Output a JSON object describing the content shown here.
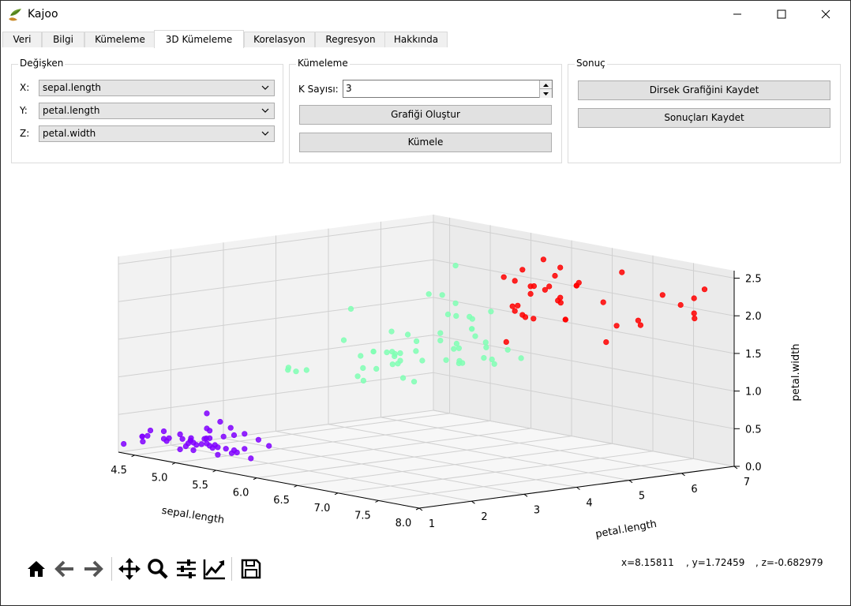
{
  "window": {
    "title": "Kajoo"
  },
  "tabs": [
    "Veri",
    "Bilgi",
    "Kümeleme",
    "3D Kümeleme",
    "Korelasyon",
    "Regresyon",
    "Hakkında"
  ],
  "active_tab": "3D Kümeleme",
  "degisken": {
    "title": "Değişken",
    "x_label": "X:",
    "x_value": "sepal.length",
    "y_label": "Y:",
    "y_value": "petal.length",
    "z_label": "Z:",
    "z_value": "petal.width"
  },
  "kumeleme": {
    "title": "Kümeleme",
    "k_label": "K Sayısı:",
    "k_value": "3",
    "plot_button": "Grafiği Oluştur",
    "cluster_button": "Kümele"
  },
  "sonuc": {
    "title": "Sonuç",
    "elbow_button": "Dirsek Grafiğini Kaydet",
    "results_button": "Sonuçları Kaydet"
  },
  "status": {
    "x": "x=8.15811",
    "y": ", y=1.72459",
    "z": ", z=-0.682979"
  },
  "toolbar_icons": [
    "home-icon",
    "back-icon",
    "forward-icon",
    "pan-icon",
    "zoom-icon",
    "configure-subplots-icon",
    "edit-axes-icon",
    "save-icon"
  ],
  "chart_data": {
    "type": "scatter",
    "dimensions": 3,
    "xlabel": "sepal.length",
    "ylabel": "petal.length",
    "zlabel": "petal.width",
    "xticks": [
      "4.5",
      "5.0",
      "5.5",
      "6.0",
      "6.5",
      "7.0",
      "7.5",
      "8.0"
    ],
    "yticks": [
      "1",
      "2",
      "3",
      "4",
      "5",
      "6",
      "7"
    ],
    "zticks": [
      "0.0",
      "0.5",
      "1.0",
      "1.5",
      "2.0",
      "2.5"
    ],
    "xlim": [
      4.3,
      8.0
    ],
    "ylim": [
      1,
      7
    ],
    "zlim": [
      0,
      2.6
    ],
    "grid": true,
    "series": [
      {
        "color": "#8000ff",
        "points": [
          [
            4.9,
            1.4,
            0.2
          ],
          [
            4.7,
            1.3,
            0.2
          ],
          [
            4.6,
            1.5,
            0.2
          ],
          [
            5.0,
            1.4,
            0.2
          ],
          [
            5.4,
            1.7,
            0.4
          ],
          [
            4.6,
            1.4,
            0.3
          ],
          [
            5.0,
            1.5,
            0.2
          ],
          [
            4.4,
            1.4,
            0.2
          ],
          [
            4.9,
            1.5,
            0.1
          ],
          [
            5.4,
            1.5,
            0.2
          ],
          [
            4.8,
            1.6,
            0.2
          ],
          [
            4.8,
            1.4,
            0.1
          ],
          [
            4.3,
            1.1,
            0.1
          ],
          [
            5.8,
            1.2,
            0.2
          ],
          [
            5.7,
            1.5,
            0.4
          ],
          [
            5.4,
            1.3,
            0.4
          ],
          [
            5.1,
            1.4,
            0.3
          ],
          [
            5.7,
            1.7,
            0.3
          ],
          [
            5.1,
            1.5,
            0.3
          ],
          [
            5.4,
            1.7,
            0.2
          ],
          [
            5.1,
            1.5,
            0.4
          ],
          [
            4.6,
            1.0,
            0.2
          ],
          [
            5.1,
            1.7,
            0.5
          ],
          [
            4.8,
            1.9,
            0.2
          ],
          [
            5.0,
            1.6,
            0.2
          ],
          [
            5.0,
            1.6,
            0.4
          ],
          [
            5.2,
            1.5,
            0.2
          ],
          [
            5.2,
            1.4,
            0.2
          ],
          [
            4.7,
            1.6,
            0.2
          ],
          [
            4.8,
            1.6,
            0.2
          ],
          [
            5.4,
            1.5,
            0.4
          ],
          [
            5.2,
            1.5,
            0.1
          ],
          [
            5.5,
            1.4,
            0.2
          ],
          [
            4.9,
            1.5,
            0.2
          ],
          [
            5.0,
            1.2,
            0.2
          ],
          [
            5.5,
            1.3,
            0.2
          ],
          [
            4.4,
            1.3,
            0.2
          ],
          [
            5.1,
            1.5,
            0.2
          ],
          [
            5.0,
            1.3,
            0.3
          ],
          [
            4.5,
            1.3,
            0.3
          ],
          [
            4.4,
            1.3,
            0.2
          ],
          [
            5.0,
            1.6,
            0.6
          ],
          [
            5.1,
            1.9,
            0.4
          ],
          [
            4.8,
            1.4,
            0.3
          ],
          [
            5.1,
            1.6,
            0.2
          ],
          [
            4.6,
            1.4,
            0.2
          ],
          [
            5.3,
            1.5,
            0.2
          ]
        ]
      },
      {
        "color": "#80ffb4",
        "points": [
          [
            5.5,
            4.0,
            1.3
          ],
          [
            6.5,
            4.6,
            1.5
          ],
          [
            5.7,
            4.5,
            1.3
          ],
          [
            6.3,
            4.7,
            1.6
          ],
          [
            4.9,
            3.3,
            1.0
          ],
          [
            6.6,
            4.6,
            1.3
          ],
          [
            5.2,
            3.9,
            1.4
          ],
          [
            5.0,
            3.5,
            1.0
          ],
          [
            5.9,
            4.2,
            1.5
          ],
          [
            6.0,
            4.0,
            1.0
          ],
          [
            6.1,
            4.7,
            1.4
          ],
          [
            5.6,
            3.6,
            1.3
          ],
          [
            6.7,
            4.4,
            1.4
          ],
          [
            5.6,
            4.5,
            1.5
          ],
          [
            5.8,
            4.1,
            1.0
          ],
          [
            6.2,
            4.5,
            1.5
          ],
          [
            5.6,
            3.9,
            1.1
          ],
          [
            5.9,
            4.8,
            1.8
          ],
          [
            6.1,
            4.0,
            1.3
          ],
          [
            6.3,
            4.9,
            1.5
          ],
          [
            6.1,
            4.7,
            1.2
          ],
          [
            6.4,
            4.3,
            1.3
          ],
          [
            6.6,
            4.4,
            1.4
          ],
          [
            6.8,
            4.8,
            1.4
          ],
          [
            6.0,
            4.5,
            1.5
          ],
          [
            5.7,
            3.5,
            1.0
          ],
          [
            5.5,
            3.8,
            1.1
          ],
          [
            5.5,
            3.7,
            1.0
          ],
          [
            5.8,
            3.9,
            1.2
          ],
          [
            6.0,
            5.1,
            1.6
          ],
          [
            5.4,
            4.5,
            1.5
          ],
          [
            6.0,
            4.5,
            1.6
          ],
          [
            6.7,
            4.7,
            1.5
          ],
          [
            6.3,
            4.4,
            1.3
          ],
          [
            5.6,
            4.1,
            1.3
          ],
          [
            5.5,
            4.0,
            1.3
          ],
          [
            5.5,
            4.4,
            1.2
          ],
          [
            6.1,
            4.6,
            1.4
          ],
          [
            5.8,
            4.0,
            1.2
          ],
          [
            5.0,
            3.3,
            1.0
          ],
          [
            5.6,
            4.2,
            1.3
          ],
          [
            5.7,
            4.2,
            1.2
          ],
          [
            5.7,
            4.2,
            1.3
          ],
          [
            6.2,
            4.3,
            1.3
          ],
          [
            5.1,
            3.0,
            1.1
          ],
          [
            5.7,
            4.1,
            1.3
          ],
          [
            5.8,
            5.1,
            1.9
          ],
          [
            4.9,
            4.5,
            1.7
          ],
          [
            5.7,
            5.0,
            2.0
          ],
          [
            5.8,
            5.1,
            2.4
          ],
          [
            6.0,
            4.8,
            1.8
          ],
          [
            5.6,
            4.9,
            2.0
          ],
          [
            6.2,
            4.8,
            1.8
          ],
          [
            6.1,
            4.9,
            1.8
          ],
          [
            6.3,
            5.0,
            1.9
          ],
          [
            6.0,
            5.1,
            1.6
          ]
        ]
      },
      {
        "color": "#ff0000",
        "points": [
          [
            6.3,
            6.0,
            2.5
          ],
          [
            7.1,
            5.9,
            2.1
          ],
          [
            6.5,
            5.8,
            2.2
          ],
          [
            7.6,
            6.6,
            2.1
          ],
          [
            7.3,
            6.3,
            1.8
          ],
          [
            6.7,
            5.8,
            1.8
          ],
          [
            7.2,
            6.1,
            2.5
          ],
          [
            6.5,
            5.1,
            2.0
          ],
          [
            6.4,
            5.3,
            1.9
          ],
          [
            6.8,
            5.5,
            2.1
          ],
          [
            6.4,
            5.3,
            2.3
          ],
          [
            6.5,
            5.5,
            1.8
          ],
          [
            7.7,
            6.7,
            2.2
          ],
          [
            7.7,
            6.9,
            2.3
          ],
          [
            6.9,
            5.7,
            2.3
          ],
          [
            7.7,
            6.7,
            2.0
          ],
          [
            6.7,
            5.7,
            2.1
          ],
          [
            7.2,
            6.0,
            1.8
          ],
          [
            6.4,
            5.6,
            2.1
          ],
          [
            7.2,
            5.8,
            1.6
          ],
          [
            7.4,
            6.1,
            1.9
          ],
          [
            7.9,
            6.4,
            2.0
          ],
          [
            6.4,
            5.6,
            2.2
          ],
          [
            6.1,
            5.6,
            1.4
          ],
          [
            7.7,
            6.1,
            2.3
          ],
          [
            6.3,
            5.6,
            2.4
          ],
          [
            6.4,
            5.5,
            1.8
          ],
          [
            6.9,
            5.4,
            2.1
          ],
          [
            6.7,
            5.6,
            2.4
          ],
          [
            6.9,
            5.1,
            2.3
          ],
          [
            6.8,
            5.9,
            2.3
          ],
          [
            6.7,
            5.7,
            2.5
          ],
          [
            6.7,
            5.2,
            2.3
          ],
          [
            6.5,
            5.2,
            2.0
          ],
          [
            6.2,
            5.4,
            2.3
          ],
          [
            6.3,
            5.6,
            1.8
          ],
          [
            6.7,
            5.8,
            1.8
          ],
          [
            6.9,
            5.7,
            2.3
          ]
        ]
      }
    ]
  }
}
